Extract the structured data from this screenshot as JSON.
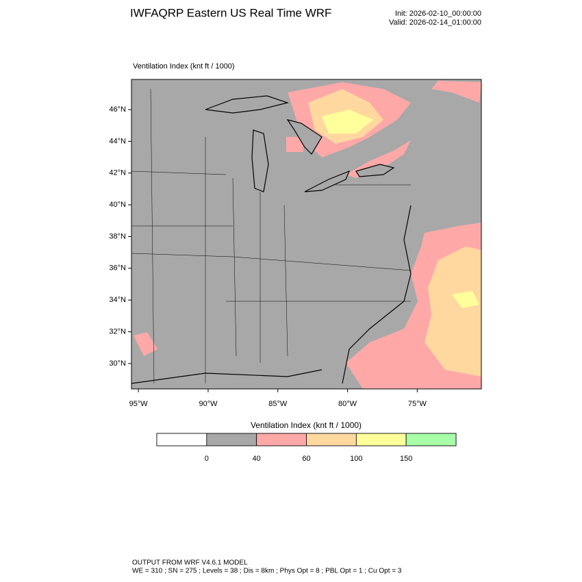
{
  "header": {
    "title": "IWFAQRP Eastern US Real Time WRF",
    "init": "Init: 2026-02-10_00:00:00",
    "valid": "Valid: 2026-02-14_01:00:00"
  },
  "map": {
    "field_label": "Ventilation Index   (knt ft / 1000)",
    "lat_range": [
      28.4,
      47.9
    ],
    "lon_range": [
      -95.5,
      -70.4
    ],
    "lat_ticks": [
      {
        "value": 30,
        "label": "30°N"
      },
      {
        "value": 32,
        "label": "32°N"
      },
      {
        "value": 34,
        "label": "34°N"
      },
      {
        "value": 36,
        "label": "36°N"
      },
      {
        "value": 38,
        "label": "38°N"
      },
      {
        "value": 40,
        "label": "40°N"
      },
      {
        "value": 42,
        "label": "42°N"
      },
      {
        "value": 44,
        "label": "44°N"
      },
      {
        "value": 46,
        "label": "46°N"
      }
    ],
    "lon_ticks": [
      {
        "value": -95,
        "label": "95°W"
      },
      {
        "value": -90,
        "label": "90°W"
      },
      {
        "value": -85,
        "label": "85°W"
      },
      {
        "value": -80,
        "label": "80°W"
      },
      {
        "value": -75,
        "label": "75°W"
      }
    ]
  },
  "colorbar": {
    "title": "Ventilation Index  (knt ft / 1000)",
    "ticks": [
      0,
      40,
      60,
      100,
      150
    ],
    "colors": [
      "#ffffff",
      "#a8a8a8",
      "#ffa8a8",
      "#ffd8a0",
      "#ffff9c",
      "#a8ffa8"
    ]
  },
  "footer": {
    "line1": "OUTPUT FROM WRF V4.6.1 MODEL",
    "line2": "WE = 310 ; SN = 275 ; Levels = 38 ; Dis = 8km ; Phys Opt = 8 ; PBL Opt = 1 ; Cu Opt = 3"
  }
}
